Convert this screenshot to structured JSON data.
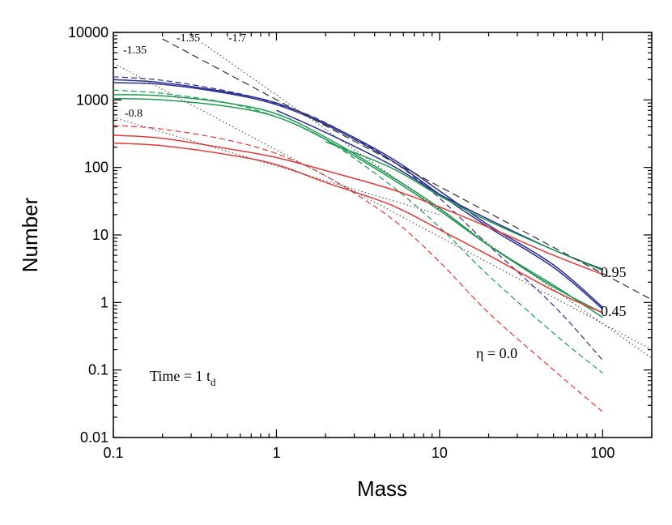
{
  "chart_data": {
    "type": "line",
    "title": "",
    "xlabel": "Mass",
    "ylabel": "Number",
    "xscale": "log",
    "yscale": "log",
    "xlim": [
      0.1,
      200
    ],
    "ylim": [
      0.01,
      10000
    ],
    "x_ticks": [
      "0.1",
      "1",
      "10",
      "100"
    ],
    "y_ticks": [
      "0.01",
      "0.1",
      "1",
      "10",
      "100",
      "1000",
      "10000"
    ],
    "grid": false,
    "series": [
      {
        "name": "blue solid a",
        "color": "#2b2f8f",
        "dash": "solid",
        "x": [
          0.1,
          0.2,
          0.5,
          1,
          2,
          5,
          10,
          20,
          50,
          100
        ],
        "y": [
          2000,
          1800,
          1300,
          900,
          450,
          140,
          45,
          14,
          3.6,
          0.85
        ]
      },
      {
        "name": "blue solid b",
        "color": "#2b2f8f",
        "dash": "solid",
        "x": [
          0.1,
          0.2,
          0.5,
          1,
          2,
          5,
          10,
          20,
          50,
          100
        ],
        "y": [
          1800,
          1700,
          1250,
          850,
          430,
          130,
          40,
          13,
          3.3,
          0.8
        ]
      },
      {
        "name": "blue dashed",
        "color": "#2b2f8f",
        "dash": "dashed",
        "x": [
          0.1,
          0.2,
          0.5,
          1,
          2,
          5,
          10,
          20,
          50,
          100
        ],
        "y": [
          2200,
          1950,
          1350,
          880,
          460,
          130,
          35,
          7,
          0.9,
          0.14
        ]
      },
      {
        "name": "blue solid upper",
        "color": "#2b2f8f",
        "dash": "solid",
        "x": [
          1,
          2,
          5,
          10,
          20,
          50,
          100
        ],
        "y": [
          700,
          330,
          110,
          40,
          17,
          6,
          3.1
        ]
      },
      {
        "name": "green solid a",
        "color": "#1f9a52",
        "dash": "solid",
        "x": [
          0.1,
          0.2,
          0.5,
          1,
          2,
          5,
          10,
          20,
          50,
          100
        ],
        "y": [
          1200,
          1150,
          900,
          620,
          280,
          75,
          25,
          7,
          1.8,
          0.6
        ]
      },
      {
        "name": "green solid b",
        "color": "#1f9a52",
        "dash": "solid",
        "x": [
          0.1,
          0.2,
          0.5,
          1,
          2,
          5,
          10,
          20,
          50,
          100
        ],
        "y": [
          1050,
          1000,
          800,
          560,
          260,
          70,
          23,
          7,
          1.7,
          0.7
        ]
      },
      {
        "name": "green dashed",
        "color": "#1f9a52",
        "dash": "dashed",
        "x": [
          0.1,
          0.2,
          0.5,
          1,
          2,
          5,
          10,
          20,
          50,
          100
        ],
        "y": [
          1400,
          1250,
          900,
          560,
          260,
          55,
          13,
          2.5,
          0.35,
          0.09
        ]
      },
      {
        "name": "green solid upper",
        "color": "#1f9a52",
        "dash": "solid",
        "x": [
          2,
          5,
          10,
          20,
          50,
          100
        ],
        "y": [
          240,
          100,
          38,
          16,
          6,
          3
        ]
      },
      {
        "name": "red solid a",
        "color": "#e23a3a",
        "dash": "solid",
        "x": [
          0.1,
          0.2,
          0.5,
          1,
          2,
          5,
          10,
          20,
          50,
          100
        ],
        "y": [
          300,
          270,
          190,
          140,
          90,
          48,
          26,
          13,
          5,
          2.6
        ]
      },
      {
        "name": "red solid b",
        "color": "#e23a3a",
        "dash": "solid",
        "x": [
          0.1,
          0.2,
          0.5,
          1,
          2,
          5,
          10,
          20,
          50,
          100
        ],
        "y": [
          230,
          210,
          155,
          110,
          60,
          28,
          12,
          5,
          1.5,
          0.7
        ]
      },
      {
        "name": "red dashed",
        "color": "#e23a3a",
        "dash": "dashed",
        "x": [
          0.1,
          0.2,
          0.5,
          1,
          2,
          5,
          10,
          20,
          50,
          100
        ],
        "y": [
          420,
          370,
          255,
          160,
          75,
          18,
          4,
          0.7,
          0.1,
          0.024
        ]
      },
      {
        "name": "ref slope -1.35 black dashed",
        "color": "#333333",
        "dash": "longdash",
        "x": [
          0.2,
          200
        ],
        "y": [
          8000,
          1.1
        ]
      },
      {
        "name": "ref slope -1.7 black dotted a",
        "color": "#555555",
        "dash": "dotted",
        "x": [
          0.35,
          200
        ],
        "y": [
          7000,
          0.15
        ]
      },
      {
        "name": "ref slope -1.35 black dotted b",
        "color": "#555555",
        "dash": "dotted",
        "x": [
          0.1,
          200
        ],
        "y": [
          3500,
          0.2
        ]
      },
      {
        "name": "ref slope -0.8 black dotted",
        "color": "#555555",
        "dash": "dotted",
        "x": [
          0.1,
          10
        ],
        "y": [
          550,
          20
        ]
      }
    ],
    "annotations": {
      "slope_135_left": "-1.35",
      "slope_135_top": "-1.35",
      "slope_17": "-1.7",
      "slope_08": "-0.8",
      "eta_095": "0.95",
      "eta_045": "0.45",
      "eta_00": "η = 0.0",
      "time_text": "Time = 1 t",
      "time_sub": "d"
    }
  }
}
